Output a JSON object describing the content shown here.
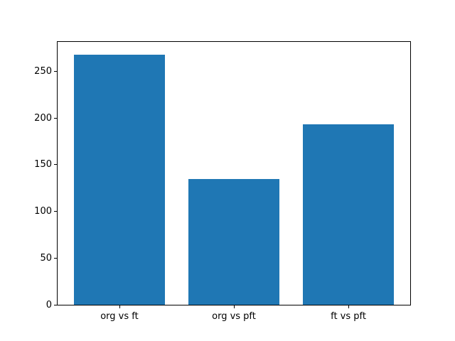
{
  "figure": {
    "background": "#ffffff"
  },
  "chart_data": {
    "type": "bar",
    "title": "",
    "xlabel": "",
    "ylabel": "",
    "categories": [
      "org vs ft",
      "org vs pft",
      "ft vs pft"
    ],
    "values": [
      268,
      135,
      193
    ],
    "yticks": [
      0,
      50,
      100,
      150,
      200,
      250
    ],
    "ylim": [
      0,
      281.4
    ],
    "xlim": [
      -0.54,
      2.54
    ],
    "bar_width": 0.8,
    "bar_color": "#1f77b4",
    "axis_color": "#000000",
    "grid": false,
    "legend": null
  }
}
